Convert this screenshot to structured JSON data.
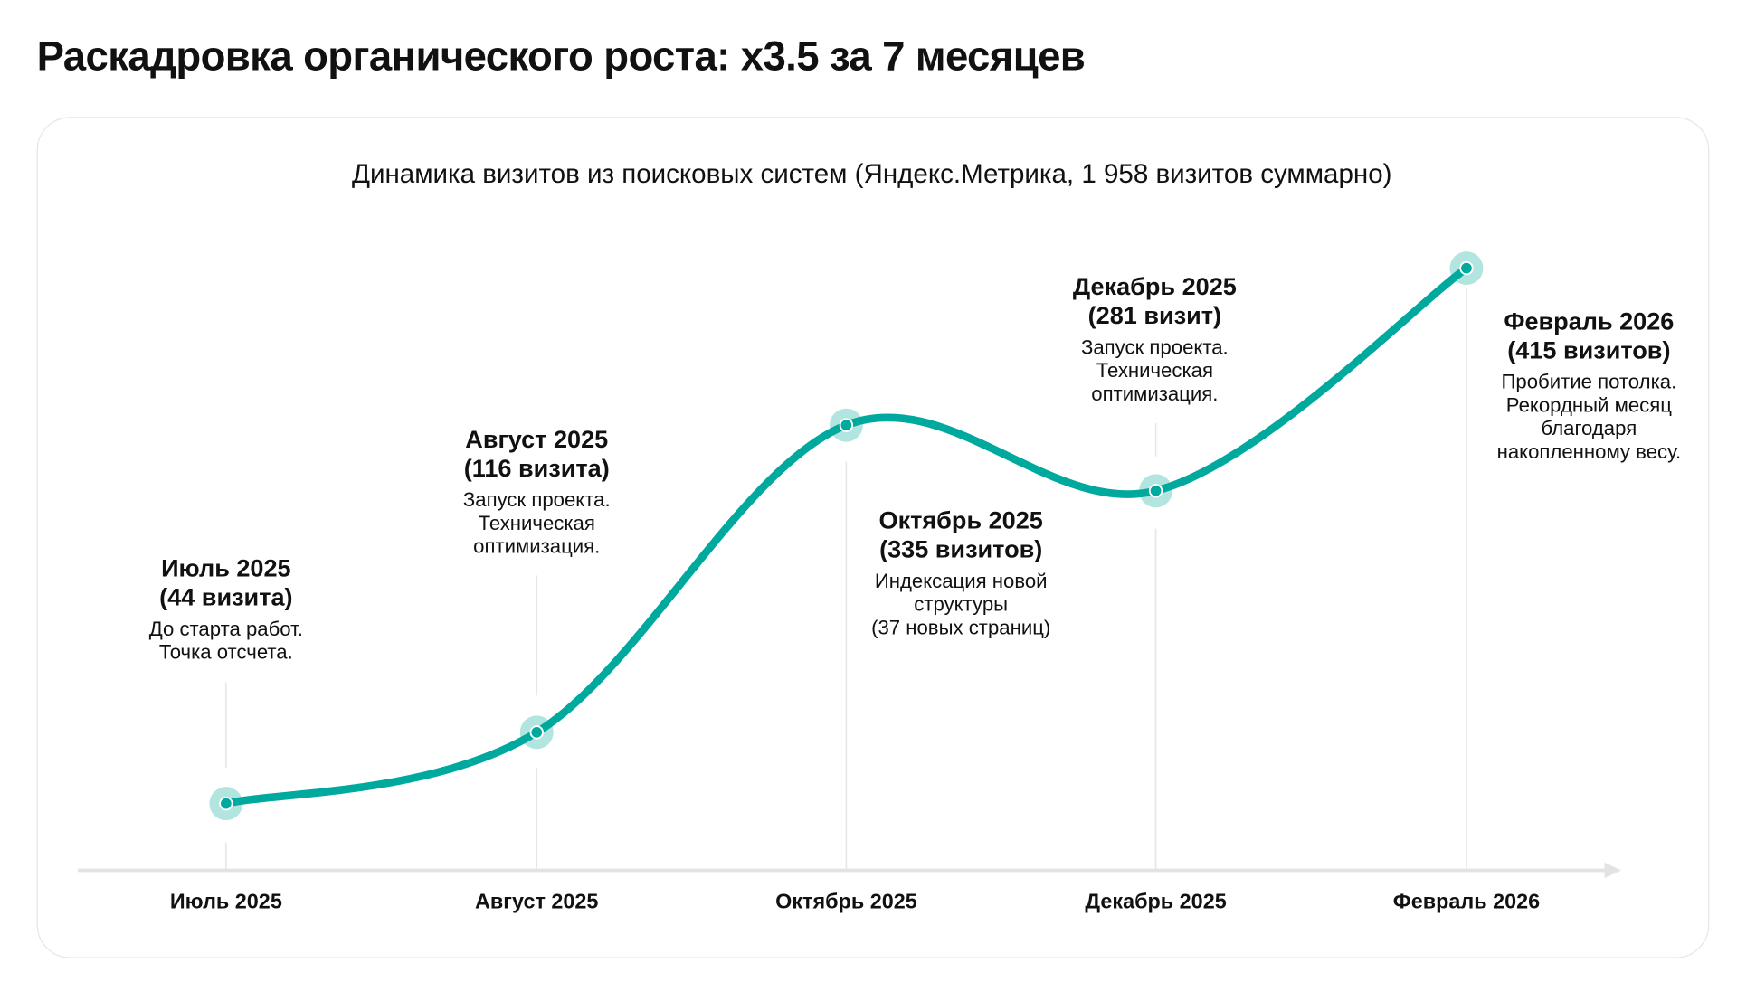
{
  "title": "Раскадровка органического роста: x3.5 за 7 месяцев",
  "chart_data": {
    "type": "line",
    "title": "Динамика визитов из поисковых систем (Яндекс.Метрика, 1 958 визитов суммарно)",
    "xlabel": "",
    "ylabel": "",
    "categories": [
      "Июль 2025",
      "Август 2025",
      "Октябрь 2025",
      "Декабрь 2025",
      "Февраль 2026"
    ],
    "values": [
      44,
      116,
      335,
      281,
      415
    ],
    "grid": "vertical",
    "colors": {
      "line": "#00a99d",
      "halo": "#b3e5e0",
      "axis": "#e3e3e3"
    },
    "annotations": [
      {
        "h1": "Июль 2025",
        "h2": "(44 визита)",
        "desc": [
          "До старта работ.",
          "Точка отсчета."
        ]
      },
      {
        "h1": "Август 2025",
        "h2": "(116 визита)",
        "desc": [
          "Запуск проекта.",
          "Техническая",
          "оптимизация."
        ]
      },
      {
        "h1": "Октябрь 2025",
        "h2": "(335 визитов)",
        "desc": [
          "Индексация новой",
          "структуры",
          "(37 новых страниц)"
        ]
      },
      {
        "h1": "Декабрь 2025",
        "h2": "(281 визит)",
        "desc": [
          "Запуск проекта.",
          "Техническая",
          "оптимизация."
        ]
      },
      {
        "h1": "Февраль 2026",
        "h2": "(415 визитов)",
        "desc": [
          "Пробитие потолка.",
          "Рекордный месяц",
          "благодаря",
          "накопленному весу."
        ]
      }
    ]
  }
}
